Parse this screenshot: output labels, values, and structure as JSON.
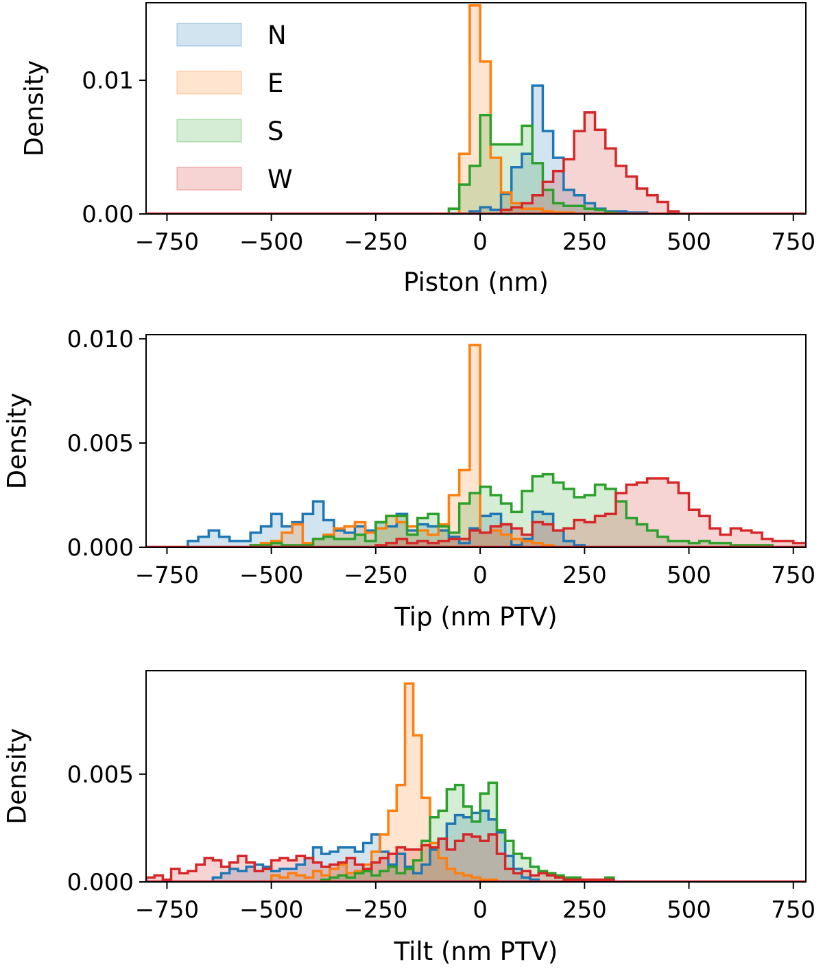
{
  "colors": {
    "N": "#1f77b4",
    "E": "#ff7f0e",
    "S": "#2ca02c",
    "W": "#d62728"
  },
  "legend": {
    "position": "top-left",
    "entries": [
      "N",
      "E",
      "S",
      "W"
    ]
  },
  "chart_data": [
    {
      "type": "histogram",
      "xlabel": "Piston (nm)",
      "ylabel": "Density",
      "xlim": [
        -800,
        780
      ],
      "ylim": [
        0,
        0.0158
      ],
      "xticks": [
        -750,
        -500,
        -250,
        0,
        250,
        500,
        750
      ],
      "xtick_labels": [
        "−750",
        "−500",
        "−250",
        "0",
        "250",
        "500",
        "750"
      ],
      "yticks": [
        0,
        0.01
      ],
      "ytick_labels": [
        "0.00",
        "0.01"
      ],
      "bin_width": 25,
      "series": [
        {
          "name": "N",
          "color": "#1f77b4",
          "start": -25,
          "values": [
            0.0002,
            0.0005,
            0.0003,
            0.0015,
            0.0035,
            0.0045,
            0.0096,
            0.0062,
            0.0042,
            0.0018,
            0.0014,
            0.0008,
            0.0004,
            0.0002,
            0.0002,
            0.0001,
            0.0001
          ]
        },
        {
          "name": "E",
          "color": "#ff7f0e",
          "start": -50,
          "values": [
            0.0045,
            0.0156,
            0.0114,
            0.0042,
            0.0016,
            0.0008,
            0.0004,
            0.0004,
            0.0002,
            0.0001,
            0.0001
          ]
        },
        {
          "name": "S",
          "color": "#2ca02c",
          "start": -75,
          "values": [
            0.0004,
            0.0022,
            0.0036,
            0.0074,
            0.0052,
            0.0052,
            0.0052,
            0.0066,
            0.0038,
            0.0018,
            0.0008,
            0.0006,
            0.0006,
            0.0004,
            0.0003,
            0.0001
          ]
        },
        {
          "name": "W",
          "color": "#d62728",
          "start": 50,
          "values": [
            0.0003,
            0.0005,
            0.0008,
            0.0014,
            0.0024,
            0.0032,
            0.0041,
            0.0062,
            0.0076,
            0.0063,
            0.0049,
            0.0036,
            0.0028,
            0.0019,
            0.0014,
            0.0009,
            0.0002
          ]
        }
      ]
    },
    {
      "type": "histogram",
      "xlabel": "Tip (nm PTV)",
      "ylabel": "Density",
      "xlim": [
        -800,
        780
      ],
      "ylim": [
        0,
        0.0102
      ],
      "xticks": [
        -750,
        -500,
        -250,
        0,
        250,
        500,
        750
      ],
      "xtick_labels": [
        "−750",
        "−500",
        "−250",
        "0",
        "250",
        "500",
        "750"
      ],
      "yticks": [
        0,
        0.005,
        0.01
      ],
      "ytick_labels": [
        "0.000",
        "0.005",
        "0.010"
      ],
      "bin_width": 25,
      "series": [
        {
          "name": "N",
          "color": "#1f77b4",
          "start": -700,
          "values": [
            0.0003,
            0.0005,
            0.0008,
            0.0005,
            0.0003,
            0.0003,
            0.0007,
            0.001,
            0.0016,
            0.001,
            0.0012,
            0.0016,
            0.0022,
            0.0013,
            0.0008,
            0.0007,
            0.001,
            0.0008,
            0.0012,
            0.001,
            0.0016,
            0.0008,
            0.0011,
            0.001,
            0.0008,
            0.0005,
            0.0002,
            0.0009,
            0.0015,
            0.0016,
            0.0011,
            0.0001,
            0.0004,
            0.0017,
            0.0016,
            0.0008,
            0.0003,
            0.0001
          ]
        },
        {
          "name": "E",
          "color": "#ff7f0e",
          "start": -550,
          "values": [
            0.0001,
            0.0002,
            0.0003,
            0.0007,
            0.0011,
            0.0002,
            0.0004,
            0.0006,
            0.0009,
            0.001,
            0.0012,
            0.0007,
            0.0009,
            0.0015,
            0.0012,
            0.001,
            0.0008,
            0.0006,
            0.0011,
            0.0025,
            0.0037,
            0.0097,
            0.0007,
            0.0008,
            0.0006,
            0.0004,
            0.0003,
            0.0002,
            0.0001
          ]
        },
        {
          "name": "S",
          "color": "#2ca02c",
          "start": -550,
          "values": [
            0.0001,
            0.0001,
            0.0002,
            0.0001,
            0.0001,
            0.0001,
            0.0004,
            0.0005,
            0.0004,
            0.0004,
            0.0006,
            0.0003,
            0.0012,
            0.0015,
            0.0015,
            0.0006,
            0.0014,
            0.0016,
            0.001,
            0.0007,
            0.0021,
            0.0026,
            0.0029,
            0.0025,
            0.0021,
            0.0017,
            0.0027,
            0.0034,
            0.0035,
            0.0031,
            0.0028,
            0.0024,
            0.0025,
            0.003,
            0.0028,
            0.0022,
            0.0014,
            0.0011,
            0.0008,
            0.0005,
            0.0003,
            0.0003,
            0.0002,
            0.0003,
            0.0002,
            0.0002,
            0.0001,
            0.0001,
            0.0001,
            0.0001
          ]
        },
        {
          "name": "W",
          "color": "#d62728",
          "start": -250,
          "values": [
            0.0001,
            0.0002,
            0.0004,
            0.0002,
            0.0003,
            0.0002,
            0.0003,
            0.0004,
            0.0004,
            0.0008,
            0.0007,
            0.001,
            0.0011,
            0.0009,
            0.0006,
            0.0012,
            0.0011,
            0.0008,
            0.0009,
            0.0013,
            0.0012,
            0.0015,
            0.0016,
            0.0026,
            0.003,
            0.0031,
            0.0033,
            0.0033,
            0.0031,
            0.0026,
            0.0018,
            0.0015,
            0.0009,
            0.0006,
            0.0009,
            0.0008,
            0.0007,
            0.0004,
            0.0003,
            0.0003,
            0.0002,
            0.0002,
            0.0001,
            0.0001
          ]
        }
      ]
    },
    {
      "type": "histogram",
      "xlabel": "Tilt (nm PTV)",
      "ylabel": "Density",
      "xlim": [
        -800,
        780
      ],
      "ylim": [
        0,
        0.0098
      ],
      "xticks": [
        -750,
        -500,
        -250,
        0,
        250,
        500,
        750
      ],
      "xtick_labels": [
        "−750",
        "−500",
        "−250",
        "0",
        "250",
        "500",
        "750"
      ],
      "yticks": [
        0,
        0.005
      ],
      "ytick_labels": [
        "0.000",
        "0.005"
      ],
      "bin_width": 20,
      "series": [
        {
          "name": "N",
          "color": "#1f77b4",
          "start": -640,
          "values": [
            0.0002,
            0.0004,
            0.0006,
            0.0005,
            0.0007,
            0.0008,
            0.0007,
            0.0005,
            0.0006,
            0.0006,
            0.0008,
            0.0011,
            0.0016,
            0.0013,
            0.0014,
            0.0016,
            0.0016,
            0.0014,
            0.0018,
            0.0022,
            0.0014,
            0.0008,
            0.0013,
            0.0007,
            0.0004,
            0.0008,
            0.0015,
            0.002,
            0.0027,
            0.0031,
            0.003,
            0.0032,
            0.0033,
            0.0029,
            0.0023,
            0.0012,
            0.0006,
            0.0002,
            0.0001
          ]
        },
        {
          "name": "E",
          "color": "#ff7f0e",
          "start": -500,
          "values": [
            0.0003,
            0.0002,
            0.0004,
            0.0003,
            0.0002,
            0.0005,
            0.0003,
            0.0006,
            0.0008,
            0.0004,
            0.0005,
            0.0008,
            0.0014,
            0.0022,
            0.0033,
            0.0045,
            0.0092,
            0.0068,
            0.0039,
            0.0018,
            0.0011,
            0.0006,
            0.0004,
            0.0003,
            0.0002,
            0.0001,
            0.0001
          ]
        },
        {
          "name": "S",
          "color": "#2ca02c",
          "start": -380,
          "values": [
            0.0001,
            0.0002,
            0.0003,
            0.0002,
            0.0004,
            0.0005,
            0.0003,
            0.0005,
            0.0007,
            0.0004,
            0.0006,
            0.001,
            0.0019,
            0.003,
            0.0033,
            0.0043,
            0.0045,
            0.0035,
            0.0028,
            0.0041,
            0.0046,
            0.0024,
            0.0019,
            0.0013,
            0.0011,
            0.0007,
            0.0005,
            0.0004,
            0.0003,
            0.0002,
            0.0002,
            0.0001,
            0.0001,
            0.0001,
            0.0002
          ]
        },
        {
          "name": "W",
          "color": "#d62728",
          "start": -800,
          "values": [
            0.0002,
            0.0003,
            0.0001,
            0.0006,
            0.0004,
            0.0005,
            0.0008,
            0.0011,
            0.001,
            0.0007,
            0.0009,
            0.0012,
            0.0009,
            0.0005,
            0.0006,
            0.001,
            0.0011,
            0.001,
            0.0012,
            0.0011,
            0.0009,
            0.0007,
            0.0008,
            0.0009,
            0.0011,
            0.0008,
            0.0006,
            0.0009,
            0.0011,
            0.0013,
            0.0016,
            0.0015,
            0.0015,
            0.0017,
            0.0016,
            0.002,
            0.0015,
            0.0019,
            0.0022,
            0.0021,
            0.0019,
            0.0022,
            0.0013,
            0.0006,
            0.0004,
            0.0005,
            0.0003,
            0.0004,
            0.0003,
            0.0002,
            0.0001,
            0.0001,
            0.0001,
            0.0001,
            0.0001,
            0.0001
          ]
        }
      ]
    }
  ]
}
